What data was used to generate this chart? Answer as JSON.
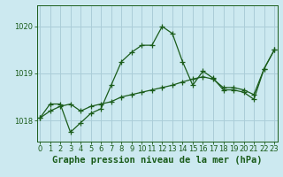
{
  "title": "Graphe pression niveau de la mer (hPa)",
  "bg_color": "#cce9f0",
  "line_color": "#1a5c1a",
  "grid_color": "#aacdd8",
  "x_ticks": [
    0,
    1,
    2,
    3,
    4,
    5,
    6,
    7,
    8,
    9,
    10,
    11,
    12,
    13,
    14,
    15,
    16,
    17,
    18,
    19,
    20,
    21,
    22,
    23
  ],
  "y_ticks": [
    1018,
    1019,
    1020
  ],
  "ylim": [
    1017.55,
    1020.45
  ],
  "xlim": [
    -0.3,
    23.3
  ],
  "series1_x": [
    0,
    1,
    2,
    3,
    4,
    5,
    6,
    7,
    8,
    9,
    10,
    11,
    12,
    13,
    14,
    15,
    16,
    17,
    18,
    19,
    20,
    21,
    22,
    23
  ],
  "series1_y": [
    1018.05,
    1018.35,
    1018.35,
    1017.75,
    1017.95,
    1018.15,
    1018.25,
    1018.75,
    1019.25,
    1019.45,
    1019.6,
    1019.6,
    1020.0,
    1019.85,
    1019.25,
    1018.75,
    1019.05,
    1018.9,
    1018.65,
    1018.65,
    1018.6,
    1018.45,
    1019.1,
    1019.5
  ],
  "series2_x": [
    0,
    1,
    2,
    3,
    4,
    5,
    6,
    7,
    8,
    9,
    10,
    11,
    12,
    13,
    14,
    15,
    16,
    17,
    18,
    19,
    20,
    21,
    22,
    23
  ],
  "series2_y": [
    1018.05,
    1018.2,
    1018.3,
    1018.35,
    1018.2,
    1018.3,
    1018.35,
    1018.4,
    1018.5,
    1018.55,
    1018.6,
    1018.65,
    1018.7,
    1018.75,
    1018.82,
    1018.88,
    1018.93,
    1018.88,
    1018.7,
    1018.7,
    1018.65,
    1018.55,
    1019.1,
    1019.5
  ],
  "title_fontsize": 7.5,
  "tick_fontsize": 6.0,
  "ylabel_fontsize": 7.0
}
